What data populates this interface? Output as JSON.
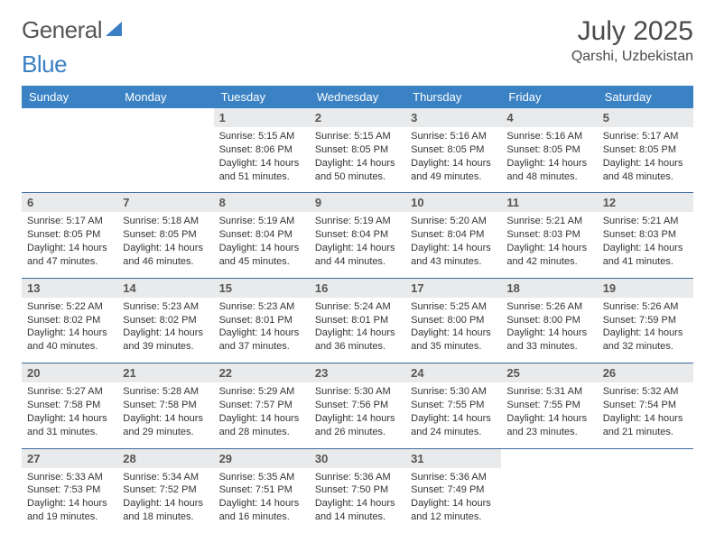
{
  "brand": {
    "part1": "General",
    "part2": "Blue"
  },
  "title": "July 2025",
  "location": "Qarshi, Uzbekistan",
  "colors": {
    "header_bg": "#3b82c4",
    "header_text": "#ffffff",
    "daynum_bg": "#e9eaeb",
    "row_border": "#3b6a9b",
    "page_bg": "#ffffff",
    "text": "#333333",
    "logo_gray": "#555658",
    "logo_blue": "#3b7fc4"
  },
  "weekdays": [
    "Sunday",
    "Monday",
    "Tuesday",
    "Wednesday",
    "Thursday",
    "Friday",
    "Saturday"
  ],
  "grid": [
    [
      null,
      null,
      {
        "day": "1",
        "sunrise": "Sunrise: 5:15 AM",
        "sunset": "Sunset: 8:06 PM",
        "daylight": "Daylight: 14 hours and 51 minutes."
      },
      {
        "day": "2",
        "sunrise": "Sunrise: 5:15 AM",
        "sunset": "Sunset: 8:05 PM",
        "daylight": "Daylight: 14 hours and 50 minutes."
      },
      {
        "day": "3",
        "sunrise": "Sunrise: 5:16 AM",
        "sunset": "Sunset: 8:05 PM",
        "daylight": "Daylight: 14 hours and 49 minutes."
      },
      {
        "day": "4",
        "sunrise": "Sunrise: 5:16 AM",
        "sunset": "Sunset: 8:05 PM",
        "daylight": "Daylight: 14 hours and 48 minutes."
      },
      {
        "day": "5",
        "sunrise": "Sunrise: 5:17 AM",
        "sunset": "Sunset: 8:05 PM",
        "daylight": "Daylight: 14 hours and 48 minutes."
      }
    ],
    [
      {
        "day": "6",
        "sunrise": "Sunrise: 5:17 AM",
        "sunset": "Sunset: 8:05 PM",
        "daylight": "Daylight: 14 hours and 47 minutes."
      },
      {
        "day": "7",
        "sunrise": "Sunrise: 5:18 AM",
        "sunset": "Sunset: 8:05 PM",
        "daylight": "Daylight: 14 hours and 46 minutes."
      },
      {
        "day": "8",
        "sunrise": "Sunrise: 5:19 AM",
        "sunset": "Sunset: 8:04 PM",
        "daylight": "Daylight: 14 hours and 45 minutes."
      },
      {
        "day": "9",
        "sunrise": "Sunrise: 5:19 AM",
        "sunset": "Sunset: 8:04 PM",
        "daylight": "Daylight: 14 hours and 44 minutes."
      },
      {
        "day": "10",
        "sunrise": "Sunrise: 5:20 AM",
        "sunset": "Sunset: 8:04 PM",
        "daylight": "Daylight: 14 hours and 43 minutes."
      },
      {
        "day": "11",
        "sunrise": "Sunrise: 5:21 AM",
        "sunset": "Sunset: 8:03 PM",
        "daylight": "Daylight: 14 hours and 42 minutes."
      },
      {
        "day": "12",
        "sunrise": "Sunrise: 5:21 AM",
        "sunset": "Sunset: 8:03 PM",
        "daylight": "Daylight: 14 hours and 41 minutes."
      }
    ],
    [
      {
        "day": "13",
        "sunrise": "Sunrise: 5:22 AM",
        "sunset": "Sunset: 8:02 PM",
        "daylight": "Daylight: 14 hours and 40 minutes."
      },
      {
        "day": "14",
        "sunrise": "Sunrise: 5:23 AM",
        "sunset": "Sunset: 8:02 PM",
        "daylight": "Daylight: 14 hours and 39 minutes."
      },
      {
        "day": "15",
        "sunrise": "Sunrise: 5:23 AM",
        "sunset": "Sunset: 8:01 PM",
        "daylight": "Daylight: 14 hours and 37 minutes."
      },
      {
        "day": "16",
        "sunrise": "Sunrise: 5:24 AM",
        "sunset": "Sunset: 8:01 PM",
        "daylight": "Daylight: 14 hours and 36 minutes."
      },
      {
        "day": "17",
        "sunrise": "Sunrise: 5:25 AM",
        "sunset": "Sunset: 8:00 PM",
        "daylight": "Daylight: 14 hours and 35 minutes."
      },
      {
        "day": "18",
        "sunrise": "Sunrise: 5:26 AM",
        "sunset": "Sunset: 8:00 PM",
        "daylight": "Daylight: 14 hours and 33 minutes."
      },
      {
        "day": "19",
        "sunrise": "Sunrise: 5:26 AM",
        "sunset": "Sunset: 7:59 PM",
        "daylight": "Daylight: 14 hours and 32 minutes."
      }
    ],
    [
      {
        "day": "20",
        "sunrise": "Sunrise: 5:27 AM",
        "sunset": "Sunset: 7:58 PM",
        "daylight": "Daylight: 14 hours and 31 minutes."
      },
      {
        "day": "21",
        "sunrise": "Sunrise: 5:28 AM",
        "sunset": "Sunset: 7:58 PM",
        "daylight": "Daylight: 14 hours and 29 minutes."
      },
      {
        "day": "22",
        "sunrise": "Sunrise: 5:29 AM",
        "sunset": "Sunset: 7:57 PM",
        "daylight": "Daylight: 14 hours and 28 minutes."
      },
      {
        "day": "23",
        "sunrise": "Sunrise: 5:30 AM",
        "sunset": "Sunset: 7:56 PM",
        "daylight": "Daylight: 14 hours and 26 minutes."
      },
      {
        "day": "24",
        "sunrise": "Sunrise: 5:30 AM",
        "sunset": "Sunset: 7:55 PM",
        "daylight": "Daylight: 14 hours and 24 minutes."
      },
      {
        "day": "25",
        "sunrise": "Sunrise: 5:31 AM",
        "sunset": "Sunset: 7:55 PM",
        "daylight": "Daylight: 14 hours and 23 minutes."
      },
      {
        "day": "26",
        "sunrise": "Sunrise: 5:32 AM",
        "sunset": "Sunset: 7:54 PM",
        "daylight": "Daylight: 14 hours and 21 minutes."
      }
    ],
    [
      {
        "day": "27",
        "sunrise": "Sunrise: 5:33 AM",
        "sunset": "Sunset: 7:53 PM",
        "daylight": "Daylight: 14 hours and 19 minutes."
      },
      {
        "day": "28",
        "sunrise": "Sunrise: 5:34 AM",
        "sunset": "Sunset: 7:52 PM",
        "daylight": "Daylight: 14 hours and 18 minutes."
      },
      {
        "day": "29",
        "sunrise": "Sunrise: 5:35 AM",
        "sunset": "Sunset: 7:51 PM",
        "daylight": "Daylight: 14 hours and 16 minutes."
      },
      {
        "day": "30",
        "sunrise": "Sunrise: 5:36 AM",
        "sunset": "Sunset: 7:50 PM",
        "daylight": "Daylight: 14 hours and 14 minutes."
      },
      {
        "day": "31",
        "sunrise": "Sunrise: 5:36 AM",
        "sunset": "Sunset: 7:49 PM",
        "daylight": "Daylight: 14 hours and 12 minutes."
      },
      null,
      null
    ]
  ]
}
